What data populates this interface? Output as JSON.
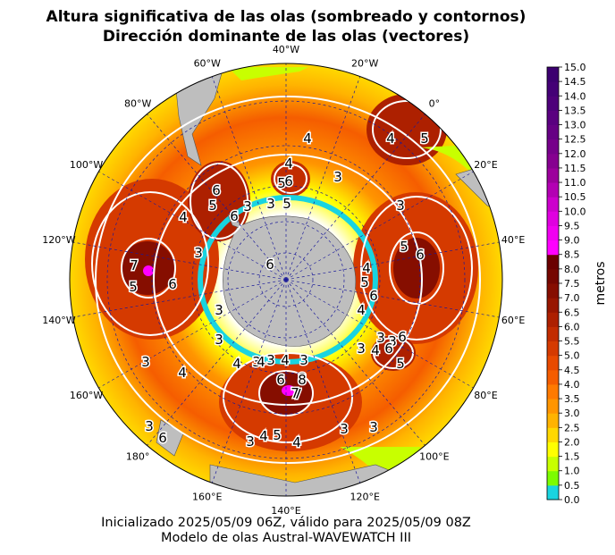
{
  "title": {
    "line1": "Altura significativa de las olas (sombreado y contornos)",
    "line2": "Dirección dominante de las olas (vectores)"
  },
  "footer": {
    "line1": "Inicializado 2025/05/09 06Z, válido para 2025/05/09 08Z",
    "line2": "Modelo de olas Austral-WAVEWATCH III"
  },
  "map": {
    "projection": "south-polar-stereographic",
    "longitude_labels": [
      "40°W",
      "20°W",
      "0°",
      "20°E",
      "40°E",
      "60°E",
      "80°E",
      "100°E",
      "120°E",
      "140°E",
      "160°E",
      "180°",
      "160°W",
      "140°W",
      "120°W",
      "100°W",
      "80°W",
      "60°W"
    ],
    "contour_labels": [
      "4",
      "4",
      "5",
      "4",
      "3",
      "5",
      "6",
      "6",
      "5",
      "6",
      "3",
      "4",
      "3",
      "3",
      "5",
      "6",
      "4",
      "5",
      "6",
      "4",
      "3",
      "6",
      "5",
      "7",
      "5",
      "6",
      "4",
      "3",
      "3",
      "6",
      "4",
      "3",
      "3",
      "4",
      "3",
      "3",
      "7",
      "8",
      "6",
      "3",
      "4",
      "5",
      "4",
      "3",
      "3",
      "4",
      "3",
      "6",
      "5",
      "6",
      "7",
      "8",
      "3",
      "4",
      "3",
      "3"
    ],
    "colors": {
      "land": "#bebebe",
      "ice_edge": "#19d4e0",
      "grid": "#1a1a9a",
      "contour": "#ffffff"
    }
  },
  "colorbar": {
    "label": "metros",
    "ticks": [
      "0.0",
      "0.5",
      "1.0",
      "1.5",
      "2.0",
      "2.5",
      "3.0",
      "3.5",
      "4.0",
      "4.5",
      "5.0",
      "5.5",
      "6.0",
      "6.5",
      "7.0",
      "7.5",
      "8.0",
      "8.5",
      "9.0",
      "9.5",
      "10.0",
      "10.5",
      "11.0",
      "11.5",
      "12.0",
      "12.5",
      "13.0",
      "13.5",
      "14.0",
      "14.5",
      "15.0"
    ],
    "colors": [
      "#19d4e0",
      "#7cfc00",
      "#c8ff00",
      "#ffff00",
      "#ffd800",
      "#ffb300",
      "#ff9500",
      "#ff7a00",
      "#f55d00",
      "#e84a00",
      "#d53a00",
      "#c22c00",
      "#ad2000",
      "#981600",
      "#860e00",
      "#750700",
      "#6a0000",
      "#ff00ff",
      "#f000f0",
      "#e000e0",
      "#cc00cc",
      "#b300b3",
      "#9c009c",
      "#860090",
      "#76008a",
      "#660084",
      "#5a0080",
      "#4e007a",
      "#440076",
      "#3c0070"
    ]
  }
}
